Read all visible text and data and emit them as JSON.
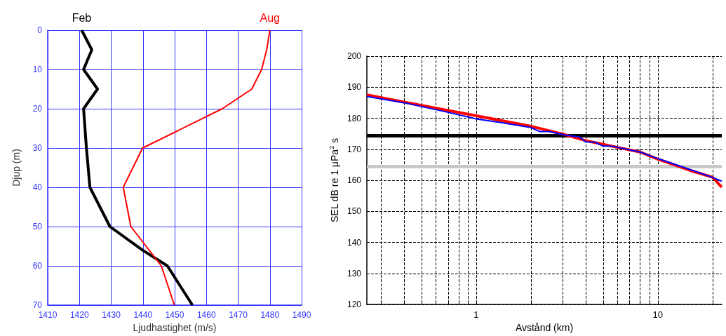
{
  "chart_data": [
    {
      "type": "line",
      "xlabel": "Ljudhastighet (m/s)",
      "ylabel": "Djup (m)",
      "xlim": [
        1410,
        1490
      ],
      "xticks": [
        1410,
        1420,
        1430,
        1440,
        1450,
        1460,
        1470,
        1480,
        1490
      ],
      "ylim": [
        70,
        0
      ],
      "yticks": [
        0,
        10,
        20,
        30,
        40,
        50,
        60,
        70
      ],
      "grid": true,
      "series": [
        {
          "name": "Feb",
          "color": "#000000",
          "x": [
            1420.7,
            1423.9,
            1421.3,
            1425.7,
            1421.3,
            1422.2,
            1423.3,
            1429.6,
            1439.9,
            1447.7,
            1455.6
          ],
          "values": [
            0,
            5,
            10,
            15,
            20,
            30,
            40,
            50,
            56,
            60,
            70
          ]
        },
        {
          "name": "Aug",
          "color": "#ff0000",
          "x": [
            1480,
            1479,
            1477.4,
            1474.3,
            1465,
            1439.9,
            1433.8,
            1436.2,
            1445.8,
            1449.9
          ],
          "values": [
            0,
            5,
            10,
            15,
            20,
            30,
            40,
            50,
            60,
            70
          ]
        }
      ]
    },
    {
      "type": "line",
      "xlabel": "Avstånd (km)",
      "ylabel": "SEL dB re 1 μPa$^{2}$ s",
      "log": "x",
      "xlim": [
        0.25,
        22.5
      ],
      "xticks": [
        {
          "value": 0.3,
          "label": null
        },
        {
          "value": 0.4,
          "label": null
        },
        {
          "value": 0.5,
          "label": null
        },
        {
          "value": 0.6,
          "label": null
        },
        {
          "value": 0.7,
          "label": null
        },
        {
          "value": 0.8,
          "label": null
        },
        {
          "value": 0.9,
          "label": null
        },
        1,
        {
          "value": 2,
          "label": null
        },
        {
          "value": 3,
          "label": null
        },
        {
          "value": 4,
          "label": null
        },
        {
          "value": 5,
          "label": null
        },
        {
          "value": 6,
          "label": null
        },
        {
          "value": 7,
          "label": null
        },
        {
          "value": 8,
          "label": null
        },
        {
          "value": 9,
          "label": null
        },
        10,
        {
          "value": 20,
          "label": null
        }
      ],
      "ylim": [
        120,
        200
      ],
      "yticks": [
        120,
        130,
        140,
        150,
        160,
        170,
        180,
        190,
        200
      ],
      "grid": true,
      "ref_lines": [
        {
          "axis": "y",
          "value": 174.5,
          "color": "#000000"
        },
        {
          "axis": "y",
          "value": 164.5,
          "color": "#c8c8c8"
        }
      ],
      "series": [
        {
          "color": "#ff0000",
          "x": [
            0.25,
            0.4,
            0.7,
            1,
            2,
            3,
            4,
            5,
            6,
            8,
            10,
            12.3,
            15.4,
            20,
            22.5
          ],
          "values": [
            187.5,
            185.2,
            182.5,
            180.8,
            177.4,
            174.9,
            172.8,
            171.6,
            170.6,
            169.1,
            166.8,
            165,
            163,
            161,
            157.8
          ]
        },
        {
          "color": "#0000ff",
          "x": [
            0.25,
            0.4,
            0.7,
            1,
            1.37,
            2,
            2.24,
            2.53,
            3,
            3.72,
            4,
            4.5,
            5,
            5.6,
            8,
            10,
            12.3,
            15.9,
            19.9,
            22.5
          ],
          "values": [
            187,
            185,
            181.9,
            179.8,
            178.6,
            177,
            175.7,
            175.7,
            174.7,
            173.9,
            172.4,
            172.3,
            171,
            171,
            169.1,
            167,
            165.2,
            163,
            161,
            159.7
          ]
        }
      ]
    }
  ]
}
